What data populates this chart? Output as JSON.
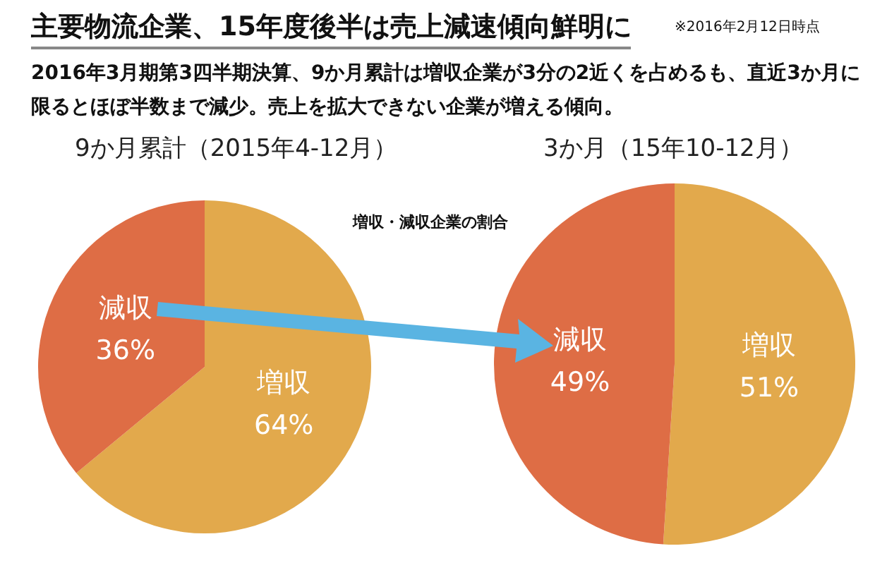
{
  "chart_data": [
    {
      "type": "pie",
      "title": "9か月累計（2015年4-12月）",
      "categories": [
        "増収",
        "減収"
      ],
      "values": [
        64,
        36
      ],
      "value_labels": [
        "64%",
        "36%"
      ],
      "colors": [
        "#e2a94c",
        "#de6d45"
      ],
      "annotations": [
        "主要物流企業、15年度後半は売上減速傾向鮮明に",
        "2016年3月期第3四半期決算、9か月累計は増収企業が3分の2近くを占めるも、直近3か月に限るとほぼ半数まで減少。売上を拡大できない企業が増える傾向。",
        "※2016年2月12日時点",
        "増収・減収企業の割合"
      ]
    },
    {
      "type": "pie",
      "title": "3か月（15年10-12月）",
      "categories": [
        "増収",
        "減収"
      ],
      "values": [
        51,
        49
      ],
      "value_labels": [
        "51%",
        "49%"
      ],
      "colors": [
        "#e2a94c",
        "#de6d45"
      ]
    }
  ]
}
